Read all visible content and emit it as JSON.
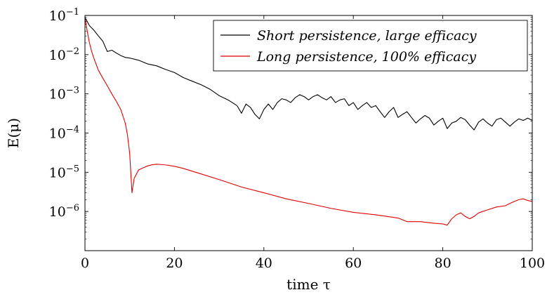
{
  "chart_data": {
    "type": "line",
    "xlabel": "time τ",
    "ylabel": "E(μ)",
    "xlim": [
      0,
      100
    ],
    "ylim": [
      1e-07,
      0.1
    ],
    "yscale": "log",
    "grid": false,
    "legend_position": "top-right",
    "x_ticks": [
      0,
      20,
      40,
      60,
      80,
      100
    ],
    "y_ticks": [
      {
        "value": 1e-06,
        "mantissa": "10",
        "exponent": "−6"
      },
      {
        "value": 1e-05,
        "mantissa": "10",
        "exponent": "−5"
      },
      {
        "value": 0.0001,
        "mantissa": "10",
        "exponent": "−4"
      },
      {
        "value": 0.001,
        "mantissa": "10",
        "exponent": "−3"
      },
      {
        "value": 0.01,
        "mantissa": "10",
        "exponent": "−2"
      },
      {
        "value": 0.1,
        "mantissa": "10",
        "exponent": "−1"
      }
    ],
    "series": [
      {
        "name": "Short persistence, large efficacy",
        "color": "#000000",
        "x": [
          0,
          0.5,
          1,
          2,
          3,
          4,
          5,
          6,
          7,
          8,
          9,
          10,
          12,
          14,
          16,
          18,
          20,
          22,
          24,
          26,
          28,
          30,
          32,
          34,
          35,
          36,
          37,
          38,
          39,
          40,
          41,
          42,
          43,
          44,
          45,
          46,
          47,
          48,
          49,
          50,
          51,
          52,
          53,
          54,
          55,
          56,
          57,
          58,
          59,
          60,
          61,
          62,
          63,
          64,
          65,
          66,
          67,
          68,
          69,
          70,
          71,
          72,
          73,
          74,
          75,
          76,
          77,
          78,
          79,
          80,
          81,
          82,
          83,
          84,
          85,
          86,
          87,
          88,
          89,
          90,
          91,
          92,
          93,
          94,
          95,
          96,
          97,
          98,
          99,
          100
        ],
        "values": [
          0.09,
          0.07,
          0.055,
          0.042,
          0.03,
          0.022,
          0.012,
          0.013,
          0.011,
          0.0095,
          0.0085,
          0.0082,
          0.0072,
          0.0058,
          0.0052,
          0.0042,
          0.0035,
          0.0026,
          0.0021,
          0.0017,
          0.0013,
          0.0009,
          0.0007,
          0.0005,
          0.00032,
          0.00055,
          0.00045,
          0.0003,
          0.00023,
          0.0004,
          0.00055,
          0.0004,
          0.0006,
          0.00075,
          0.0007,
          0.0006,
          0.0008,
          0.00095,
          0.00085,
          0.0007,
          0.00085,
          0.00095,
          0.0008,
          0.0007,
          0.00085,
          0.0006,
          0.0007,
          0.00075,
          0.0005,
          0.0006,
          0.0004,
          0.0005,
          0.0006,
          0.00045,
          0.0005,
          0.00035,
          0.00025,
          0.00035,
          0.00045,
          0.00025,
          0.0003,
          0.00035,
          0.00025,
          0.00018,
          0.00023,
          0.00028,
          0.00024,
          0.00016,
          0.0002,
          0.00024,
          0.00013,
          0.00018,
          0.0002,
          0.00025,
          0.00022,
          0.00016,
          0.00012,
          0.00019,
          0.00023,
          0.00018,
          0.00015,
          0.00022,
          0.00024,
          0.00019,
          0.00015,
          0.00019,
          0.00023,
          0.00021,
          0.00024,
          0.00021
        ]
      },
      {
        "name": "Long persistence, 100% efficacy",
        "color": "#e00000",
        "x": [
          0,
          0.5,
          1,
          1.5,
          2,
          3,
          4,
          5,
          6,
          7,
          8,
          9,
          9.5,
          10,
          10.5,
          11,
          11.5,
          12,
          13,
          14,
          15,
          16,
          17,
          18,
          20,
          22,
          25,
          30,
          35,
          40,
          45,
          50,
          55,
          60,
          65,
          70,
          72,
          75,
          78,
          80,
          81,
          82,
          83,
          84,
          85,
          86,
          87,
          88,
          90,
          92,
          94,
          95,
          96,
          97,
          98,
          99,
          100
        ],
        "values": [
          0.09,
          0.04,
          0.02,
          0.012,
          0.008,
          0.004,
          0.0025,
          0.0016,
          0.001,
          0.00065,
          0.0004,
          0.00018,
          9e-05,
          3e-05,
          3e-06,
          7e-06,
          9e-06,
          1.15e-05,
          1.3e-05,
          1.45e-05,
          1.55e-05,
          1.6e-05,
          1.58e-05,
          1.54e-05,
          1.42e-05,
          1.25e-05,
          9.8e-06,
          6.5e-06,
          4.2e-06,
          3e-06,
          2.1e-06,
          1.6e-06,
          1.2e-06,
          9.5e-07,
          8.2e-07,
          6.8e-07,
          5.5e-07,
          5.5e-07,
          5e-07,
          4.8e-07,
          4.5e-07,
          6.5e-07,
          8.2e-07,
          9.2e-07,
          7.5e-07,
          6.5e-07,
          7.5e-07,
          9.2e-07,
          1.1e-06,
          1.3e-06,
          1.4e-06,
          1.6e-06,
          1.8e-06,
          2e-06,
          2.1e-06,
          1.9e-06,
          1.8e-06
        ]
      }
    ]
  }
}
